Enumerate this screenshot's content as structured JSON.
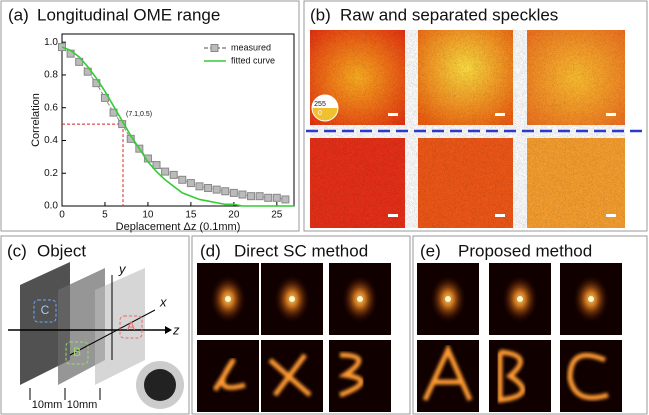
{
  "chart_data": {
    "type": "line",
    "label": "(a)",
    "title": "Longitudinal OME range",
    "xlabel": "Deplacement Δz (0.1mm)",
    "ylabel": "Correlation",
    "xlim": [
      0,
      27
    ],
    "ylim": [
      0,
      1.05
    ],
    "xticks": [
      0,
      5,
      10,
      15,
      20,
      25
    ],
    "yticks": [
      {
        "value": 0,
        "label": "0.0"
      },
      0.2,
      0.4,
      0.6,
      0.8,
      {
        "value": 1,
        "label": "1.0"
      }
    ],
    "series": [
      {
        "name": "measured",
        "color": "#888888",
        "marker": "square",
        "x": [
          0,
          1,
          2,
          3,
          4,
          5,
          6,
          7,
          8,
          9,
          10,
          11,
          12,
          13,
          14,
          15,
          16,
          17,
          18,
          19,
          20,
          21,
          22,
          23,
          24,
          25,
          26
        ],
        "values": [
          0.97,
          0.93,
          0.88,
          0.82,
          0.75,
          0.66,
          0.57,
          0.5,
          0.41,
          0.35,
          0.29,
          0.25,
          0.21,
          0.19,
          0.16,
          0.14,
          0.12,
          0.11,
          0.1,
          0.09,
          0.08,
          0.07,
          0.06,
          0.06,
          0.05,
          0.05,
          0.04
        ]
      },
      {
        "name": "fitted curve",
        "color": "#33cc33",
        "x": [
          0,
          1,
          2,
          3,
          4,
          5,
          6,
          7,
          8,
          9,
          10,
          11,
          12,
          13,
          14,
          15,
          16,
          17,
          18,
          19,
          20,
          21,
          22,
          23,
          24,
          25,
          26,
          27
        ],
        "values": [
          0.97,
          0.95,
          0.91,
          0.85,
          0.78,
          0.7,
          0.61,
          0.52,
          0.43,
          0.35,
          0.27,
          0.21,
          0.16,
          0.12,
          0.08,
          0.06,
          0.04,
          0.03,
          0.02,
          0.01,
          0.01,
          0,
          0,
          0,
          0,
          0,
          0,
          0
        ]
      }
    ],
    "annotation": {
      "text": "(7.1,0.5)",
      "x": 7.1,
      "y": 0.5,
      "color": "#dd2222"
    },
    "legend": "upper right"
  },
  "panels": [
    {
      "label": "(b)",
      "title": "Raw and separated speckles"
    },
    {
      "label": "(c)",
      "title": "Object"
    },
    {
      "label": "(d)",
      "title": "Direct SC method"
    },
    {
      "label": "(e)",
      "title": "Proposed method"
    }
  ],
  "colorbar": {
    "max": "255",
    "min": "0"
  },
  "object_labels": {
    "y": "y",
    "x": "x",
    "z": "z",
    "c": "C",
    "b": "B",
    "a": "A",
    "gap1": "10mm",
    "gap2": "10mm"
  }
}
